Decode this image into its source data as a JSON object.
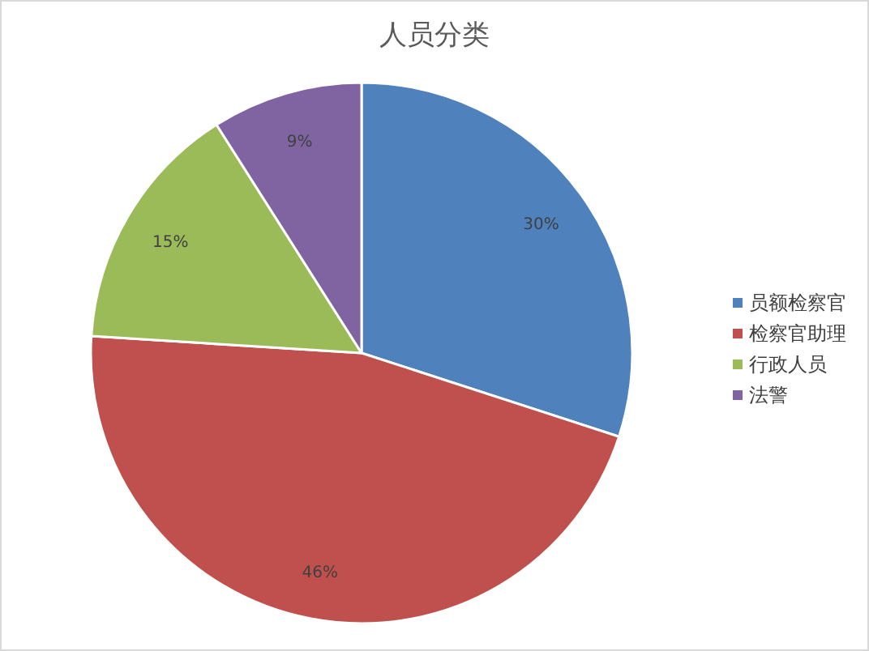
{
  "chart_data": {
    "type": "pie",
    "title": "人员分类",
    "categories": [
      "员额检察官",
      "检察官助理",
      "行政人员",
      "法警"
    ],
    "values": [
      30,
      46,
      15,
      9
    ],
    "colors": [
      "#4f81bd",
      "#c0504d",
      "#9bbb59",
      "#8064a2"
    ],
    "value_labels": [
      "30%",
      "46%",
      "15%",
      "9%"
    ],
    "legend": "right"
  }
}
